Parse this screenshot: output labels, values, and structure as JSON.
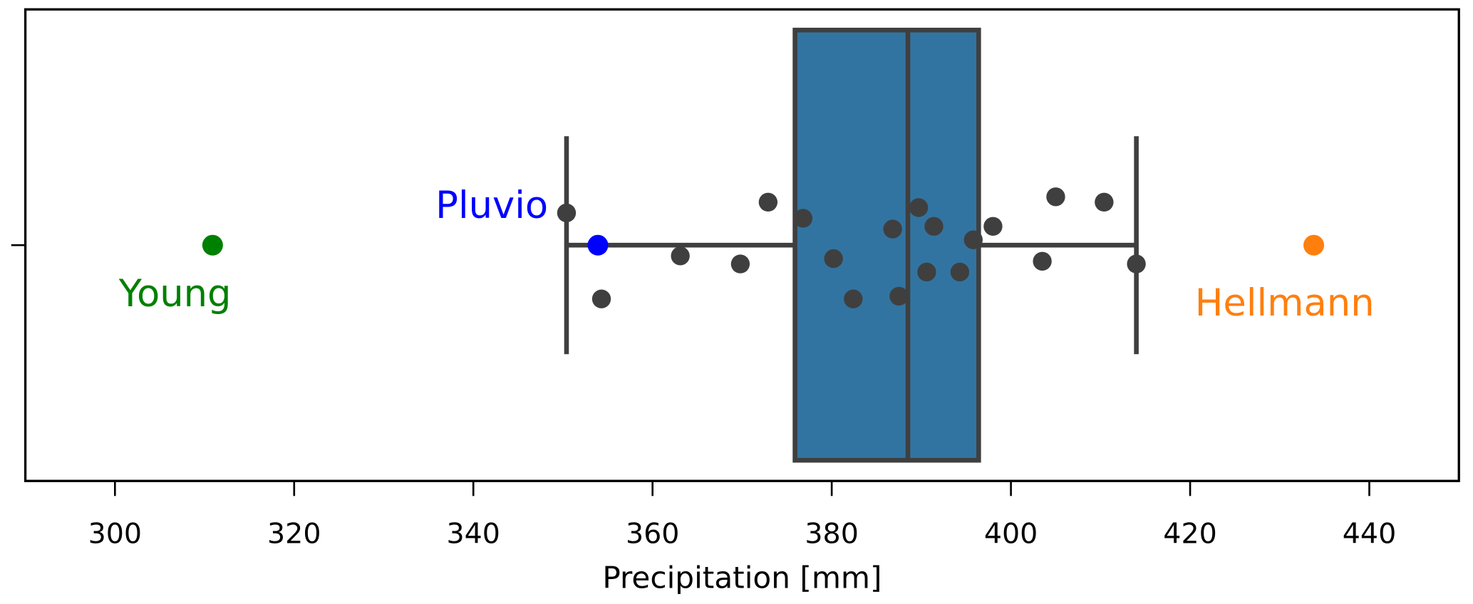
{
  "chart_data": {
    "type": "box",
    "xlabel": "Precipitation [mm]",
    "ylabel": "",
    "xlim": [
      290,
      450
    ],
    "xticks": [
      300,
      320,
      340,
      360,
      380,
      400,
      420,
      440
    ],
    "xtick_labels": [
      "300",
      "320",
      "340",
      "360",
      "380",
      "400",
      "420",
      "440"
    ],
    "grid": false,
    "box": {
      "whisker_low": 350.4,
      "q1": 375.9,
      "median": 388.5,
      "q3": 396.4,
      "whisker_high": 414.0,
      "fill_color": "#3274a1",
      "edge_color": "#3f3f3f"
    },
    "strip_points": {
      "color": "#3f3f3f",
      "values": [
        350.4,
        354.3,
        363.1,
        369.8,
        372.9,
        376.8,
        380.2,
        382.4,
        386.8,
        387.5,
        389.7,
        391.4,
        390.6,
        394.3,
        395.8,
        398.0,
        403.5,
        405.0,
        410.4,
        414.0
      ],
      "jitter": [
        -0.06,
        0.1,
        0.02,
        0.035,
        -0.08,
        -0.05,
        0.025,
        0.1,
        -0.03,
        0.095,
        -0.07,
        -0.035,
        0.05,
        0.05,
        -0.01,
        -0.035,
        0.03,
        -0.09,
        -0.08,
        0.035
      ]
    },
    "highlighted": [
      {
        "name": "Young",
        "value": 310.9,
        "color": "#008000",
        "label_side": "below"
      },
      {
        "name": "Pluvio",
        "value": 353.9,
        "color": "#0000ff",
        "label_side": "above-left"
      },
      {
        "name": "Hellmann",
        "value": 433.8,
        "color": "#ff7f0e",
        "label_side": "below"
      }
    ]
  }
}
